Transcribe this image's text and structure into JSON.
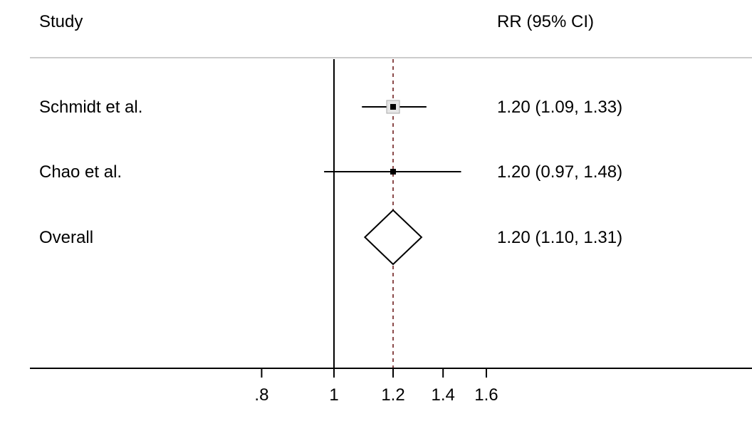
{
  "chart_data": {
    "type": "forest",
    "header": {
      "study": "Study",
      "estimate": "RR (95% CI)"
    },
    "rows": [
      {
        "label": "Schmidt et al.",
        "rr": 1.2,
        "lower": 1.09,
        "upper": 1.33,
        "text": "1.20 (1.09, 1.33)",
        "marker": "square"
      },
      {
        "label": "Chao et al.",
        "rr": 1.2,
        "lower": 0.97,
        "upper": 1.48,
        "text": "1.20 (0.97, 1.48)",
        "marker": "square"
      },
      {
        "label": "Overall",
        "rr": 1.2,
        "lower": 1.1,
        "upper": 1.31,
        "text": "1.20 (1.10, 1.31)",
        "marker": "diamond"
      }
    ],
    "x_ticks": [
      {
        "value": 0.8,
        "label": ".8"
      },
      {
        "value": 1,
        "label": "1"
      },
      {
        "value": 1.2,
        "label": "1.2"
      },
      {
        "value": 1.4,
        "label": "1.4"
      },
      {
        "value": 1.6,
        "label": "1.6"
      }
    ],
    "null_line": 1,
    "pooled_line": 1.2,
    "x_scale": "log",
    "colors": {
      "text": "#000000",
      "pooled_line": "#8b4a4a",
      "header_rule": "#cccccc",
      "ci_line": "#000000"
    }
  }
}
